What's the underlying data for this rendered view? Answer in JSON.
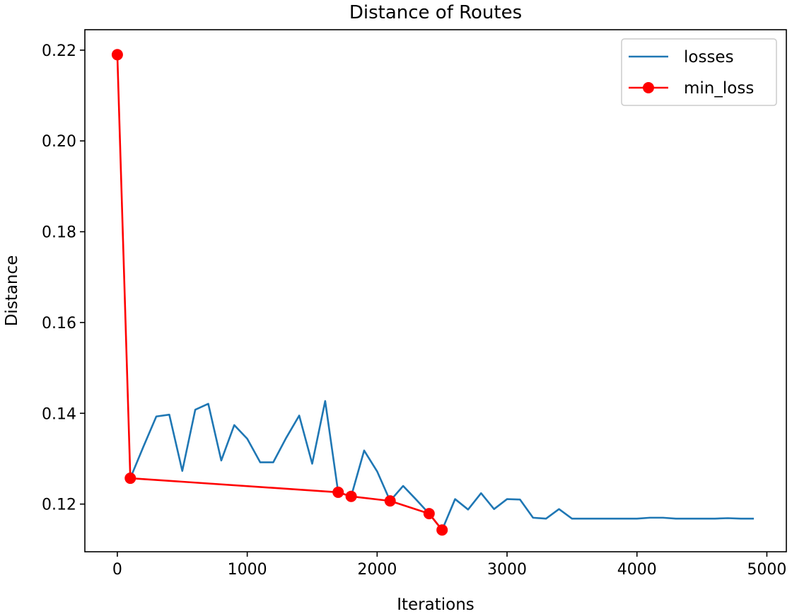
{
  "chart_data": {
    "type": "line",
    "title": "Distance of Routes",
    "xlabel": "Iterations",
    "ylabel": "Distance",
    "xlim": [
      -250,
      5150
    ],
    "ylim": [
      0.1095,
      0.2245
    ],
    "x_ticks": [
      0,
      1000,
      2000,
      3000,
      4000,
      5000
    ],
    "x_tick_labels": [
      "0",
      "1000",
      "2000",
      "3000",
      "4000",
      "5000"
    ],
    "y_ticks": [
      0.12,
      0.14,
      0.16,
      0.18,
      0.2,
      0.22
    ],
    "y_tick_labels": [
      "0.12",
      "0.14",
      "0.16",
      "0.18",
      "0.20",
      "0.22"
    ],
    "grid": false,
    "legend": "top-right",
    "series": [
      {
        "name": "losses",
        "color": "#1f77b4",
        "marker": "none",
        "x": [
          100,
          200,
          300,
          400,
          500,
          600,
          700,
          800,
          900,
          1000,
          1100,
          1200,
          1300,
          1400,
          1500,
          1600,
          1700,
          1800,
          1900,
          2000,
          2100,
          2200,
          2300,
          2400,
          2500,
          2600,
          2700,
          2800,
          2900,
          3000,
          3100,
          3200,
          3300,
          3400,
          3500,
          3600,
          3700,
          3800,
          3900,
          4000,
          4100,
          4200,
          4300,
          4400,
          4500,
          4600,
          4700,
          4800,
          4900
        ],
        "y": [
          0.1257,
          0.1326,
          0.1393,
          0.1397,
          0.1273,
          0.1408,
          0.1421,
          0.1296,
          0.1374,
          0.1344,
          0.1292,
          0.1292,
          0.1346,
          0.1395,
          0.1289,
          0.1427,
          0.1226,
          0.1217,
          0.1318,
          0.1272,
          0.1207,
          0.124,
          0.121,
          0.1179,
          0.1143,
          0.1211,
          0.1188,
          0.1224,
          0.1189,
          0.1211,
          0.121,
          0.117,
          0.1168,
          0.1189,
          0.1168,
          0.1168,
          0.1168,
          0.1168,
          0.1168,
          0.1168,
          0.117,
          0.117,
          0.1168,
          0.1168,
          0.1168,
          0.1168,
          0.1169,
          0.1168,
          0.1168
        ]
      },
      {
        "name": "min_loss",
        "color": "#ff0000",
        "marker": "circle",
        "x": [
          0,
          100,
          1700,
          1800,
          2100,
          2400,
          2500
        ],
        "y": [
          0.219,
          0.1257,
          0.1226,
          0.1217,
          0.1207,
          0.1179,
          0.1143
        ]
      }
    ]
  }
}
